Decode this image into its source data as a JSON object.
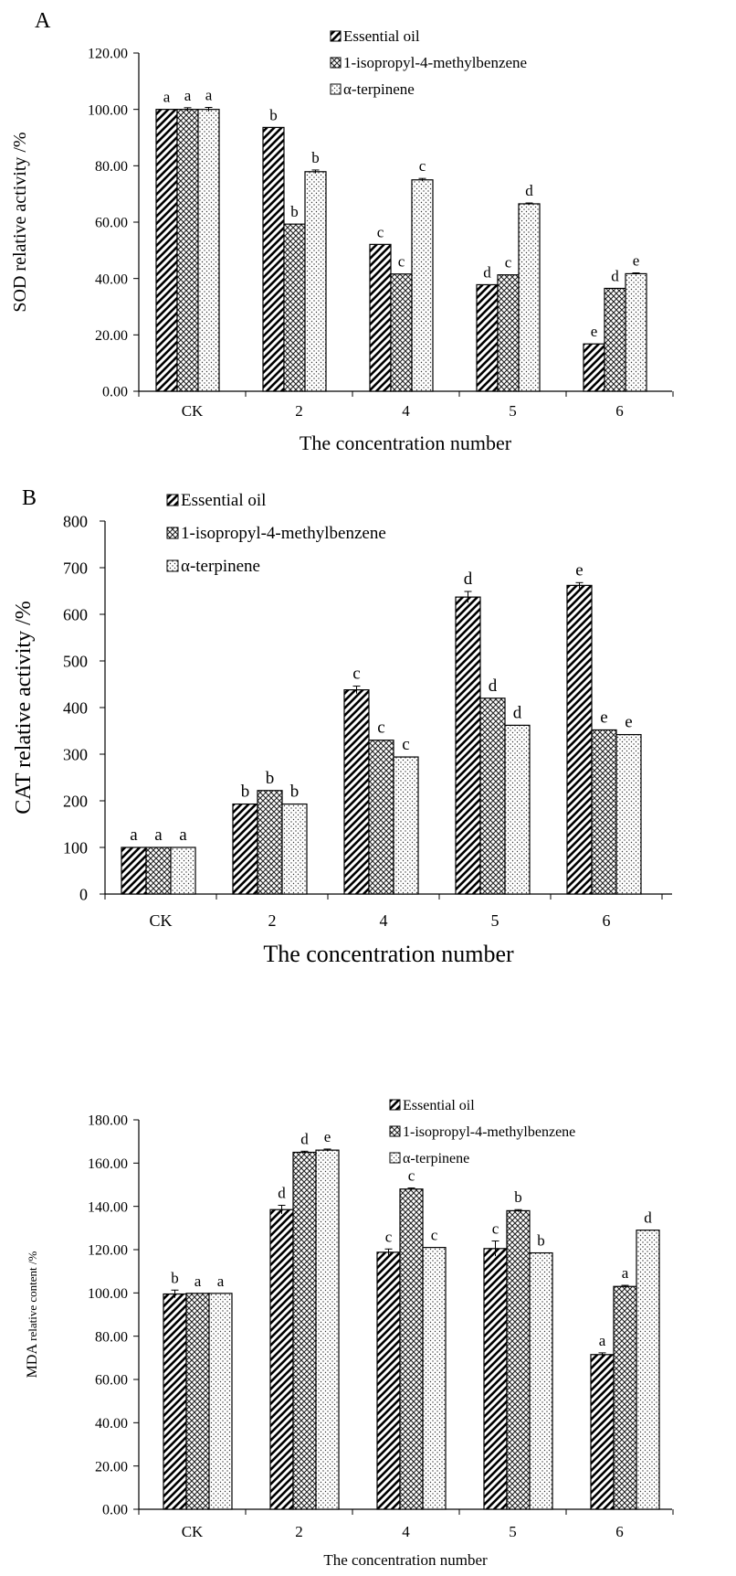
{
  "chart_data": [
    {
      "type": "bar",
      "panel_label": "A",
      "categories": [
        "CK",
        "2",
        "4",
        "5",
        "6"
      ],
      "xlabel": "The concentration number",
      "ylabel": "SOD relative activity /%",
      "ylim": [
        0,
        120
      ],
      "yticks": [
        "0.00",
        "20.00",
        "40.00",
        "60.00",
        "80.00",
        "100.00",
        "120.00"
      ],
      "grid": false,
      "legend_position": "top-right",
      "series": [
        {
          "name": "Essential oil",
          "pattern": "diagonal",
          "values": [
            100,
            93.6,
            52.1,
            37.8,
            16.8
          ],
          "errors": [
            0,
            0,
            0,
            0,
            0
          ],
          "letters": [
            "a",
            "b",
            "c",
            "d",
            "e"
          ]
        },
        {
          "name": "1-isopropyl-4-methylbenzene",
          "pattern": "crosshatch",
          "values": [
            100,
            59.3,
            41.6,
            41.3,
            36.5
          ],
          "errors": [
            0.6,
            0,
            0,
            0,
            0
          ],
          "letters": [
            "a",
            "b",
            "c",
            "c",
            "d"
          ]
        },
        {
          "name": "α-terpinene",
          "pattern": "dots",
          "values": [
            100,
            77.9,
            75.0,
            66.5,
            41.7
          ],
          "errors": [
            0.7,
            0.6,
            0.5,
            0.3,
            0.3
          ],
          "letters": [
            "a",
            "b",
            "c",
            "d",
            "e"
          ]
        }
      ]
    },
    {
      "type": "bar",
      "panel_label": "B",
      "categories": [
        "CK",
        "2",
        "4",
        "5",
        "6"
      ],
      "xlabel": "The concentration number",
      "ylabel": "CAT relative activity /%",
      "ylim": [
        0,
        800
      ],
      "yticks": [
        "0",
        "100",
        "200",
        "300",
        "400",
        "500",
        "600",
        "700",
        "800"
      ],
      "grid": false,
      "legend_position": "top-left",
      "series": [
        {
          "name": "Essential oil",
          "pattern": "diagonal",
          "values": [
            100,
            193,
            438,
            637,
            662
          ],
          "errors": [
            0,
            0,
            8,
            12,
            6
          ],
          "letters": [
            "a",
            "b",
            "c",
            "d",
            "e"
          ]
        },
        {
          "name": "1-isopropyl-4-methylbenzene",
          "pattern": "crosshatch",
          "values": [
            100,
            222,
            330,
            420,
            352
          ],
          "errors": [
            0,
            0,
            0,
            0,
            0
          ],
          "letters": [
            "a",
            "b",
            "c",
            "d",
            "e"
          ]
        },
        {
          "name": "α-terpinene",
          "pattern": "dots",
          "values": [
            100,
            193,
            294,
            362,
            342
          ],
          "errors": [
            0,
            0,
            0,
            0,
            0
          ],
          "letters": [
            "a",
            "b",
            "c",
            "d",
            "e"
          ]
        }
      ]
    },
    {
      "type": "bar",
      "panel_label": "",
      "categories": [
        "CK",
        "2",
        "4",
        "5",
        "6"
      ],
      "xlabel": "The concentration number",
      "ylabel_main": "MDA",
      "ylabel_rest": "relative content /%",
      "ylim": [
        0,
        180
      ],
      "yticks": [
        "0.00",
        "20.00",
        "40.00",
        "60.00",
        "80.00",
        "100.00",
        "120.00",
        "140.00",
        "160.00",
        "180.00"
      ],
      "grid": false,
      "legend_position": "top-right",
      "series": [
        {
          "name": "Essential oil",
          "pattern": "diagonal",
          "values": [
            99.5,
            138.5,
            118.8,
            120.5,
            71.5
          ],
          "errors": [
            1.8,
            2.0,
            1.5,
            3.5,
            0.8
          ],
          "letters": [
            "b",
            "d",
            "c",
            "c",
            "a"
          ]
        },
        {
          "name": "1-isopropyl-4-methylbenzene",
          "pattern": "crosshatch",
          "values": [
            99.8,
            165.0,
            148.0,
            138.0,
            103.0
          ],
          "errors": [
            0,
            0.5,
            0.5,
            0.5,
            0.5
          ],
          "letters": [
            "a",
            "d",
            "c",
            "b",
            "a"
          ]
        },
        {
          "name": "α-terpinene",
          "pattern": "dots",
          "values": [
            99.8,
            166.0,
            121.0,
            118.5,
            129.0
          ],
          "errors": [
            0,
            0.5,
            0,
            0,
            0
          ],
          "letters": [
            "a",
            "e",
            "c",
            "b",
            "d"
          ]
        }
      ]
    }
  ]
}
